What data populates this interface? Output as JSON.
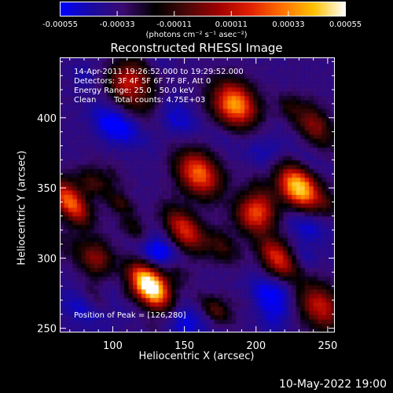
{
  "chart_data": {
    "type": "heatmap",
    "title": "Reconstructed RHESSI Image",
    "xlabel": "Heliocentric X (arcsec)",
    "ylabel": "Heliocentric Y (arcsec)",
    "xlim": [
      63,
      255
    ],
    "ylim": [
      247,
      443
    ],
    "xticks": [
      100,
      150,
      200,
      250
    ],
    "yticks": [
      250,
      300,
      350,
      400
    ],
    "colorbar": {
      "range": [
        -0.00055,
        0.00055
      ],
      "ticks": [
        "-0.00055",
        "-0.00033",
        "-0.00011",
        "0.00011",
        "0.00033",
        "0.00055"
      ],
      "units": "(photons cm⁻² s⁻¹ asec⁻²)",
      "colormap": [
        "#0000ff",
        "#1a0aa0",
        "#3a0a70",
        "#000000",
        "#4a0808",
        "#a00000",
        "#e02000",
        "#ff7000",
        "#ffc000",
        "#ffffff"
      ]
    },
    "annotations": {
      "time": "14-Apr-2011 19:26:52.000 to 19:29:52.000",
      "detectors": "Detectors: 3F 4F 5F 6F 7F 8F, Att 0",
      "energy": "Energy Range: 25.0 - 50.0 keV",
      "method": "Clean",
      "counts": "Total counts: 4.75E+03",
      "peak": "Position of Peak = [126,280]"
    },
    "bright_sources": [
      {
        "x": 126,
        "y": 280,
        "intensity": 1.0
      },
      {
        "x": 185,
        "y": 410,
        "intensity": 0.7
      },
      {
        "x": 230,
        "y": 350,
        "intensity": 0.8
      },
      {
        "x": 200,
        "y": 332,
        "intensity": 0.55
      },
      {
        "x": 160,
        "y": 360,
        "intensity": 0.6
      },
      {
        "x": 150,
        "y": 320,
        "intensity": 0.5
      },
      {
        "x": 70,
        "y": 340,
        "intensity": 0.6
      },
      {
        "x": 215,
        "y": 300,
        "intensity": 0.5
      },
      {
        "x": 110,
        "y": 425,
        "intensity": 0.4
      },
      {
        "x": 245,
        "y": 265,
        "intensity": 0.45
      },
      {
        "x": 88,
        "y": 300,
        "intensity": 0.35
      },
      {
        "x": 240,
        "y": 395,
        "intensity": 0.35
      }
    ],
    "dark_regions": [
      {
        "x": 130,
        "y": 305,
        "intensity": -0.6
      },
      {
        "x": 100,
        "y": 395,
        "intensity": -0.5
      },
      {
        "x": 210,
        "y": 272,
        "intensity": -0.5
      },
      {
        "x": 150,
        "y": 255,
        "intensity": -0.4
      },
      {
        "x": 80,
        "y": 265,
        "intensity": -0.4
      },
      {
        "x": 200,
        "y": 375,
        "intensity": -0.3
      },
      {
        "x": 145,
        "y": 400,
        "intensity": -0.35
      },
      {
        "x": 235,
        "y": 325,
        "intensity": -0.4
      }
    ]
  },
  "footer": {
    "date": "10-May-2022 19:00"
  }
}
